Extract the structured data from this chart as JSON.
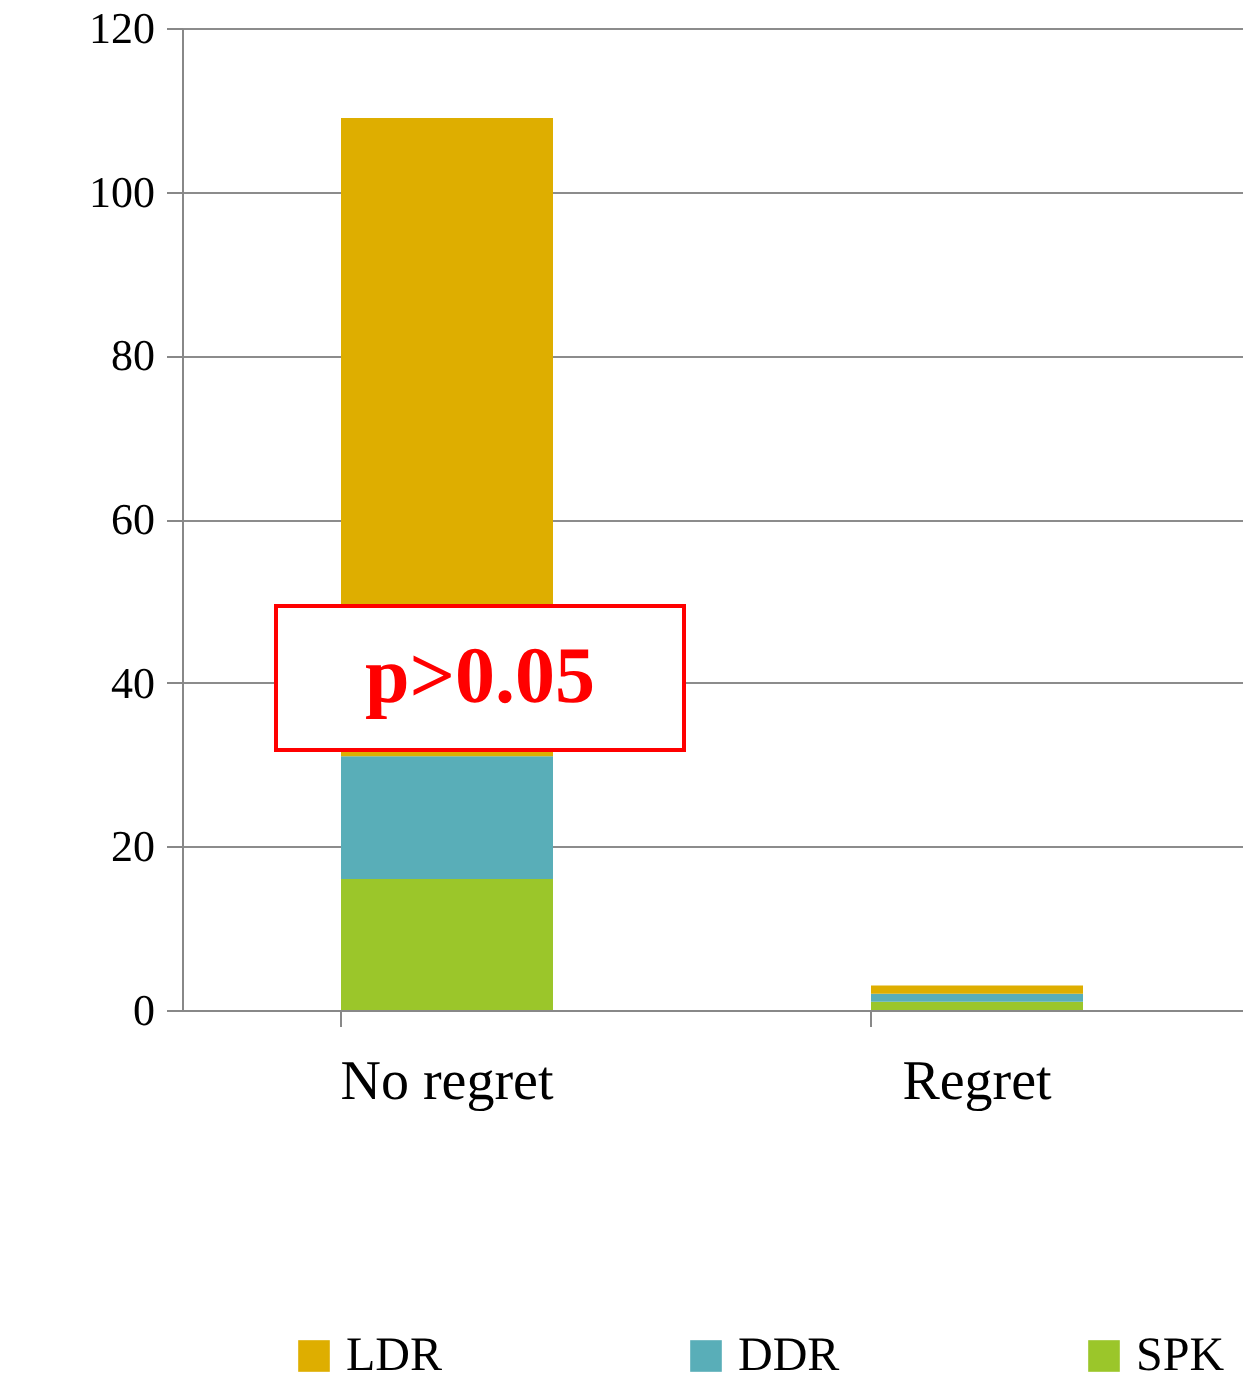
{
  "chart_data": {
    "type": "bar",
    "stacked": true,
    "categories": [
      "No regret",
      "Regret"
    ],
    "series": [
      {
        "name": "SPK",
        "color": "#9bc62a",
        "values": [
          16,
          1
        ]
      },
      {
        "name": "DDR",
        "color": "#59aeb8",
        "values": [
          15,
          1
        ]
      },
      {
        "name": "LDR",
        "color": "#deae00",
        "values": [
          78,
          1
        ]
      }
    ],
    "ylim": [
      0,
      120
    ],
    "yticks": [
      0,
      20,
      40,
      60,
      80,
      100,
      120
    ],
    "grid": "y",
    "legend": "bottom",
    "annotations": [
      "p>0.05"
    ]
  }
}
